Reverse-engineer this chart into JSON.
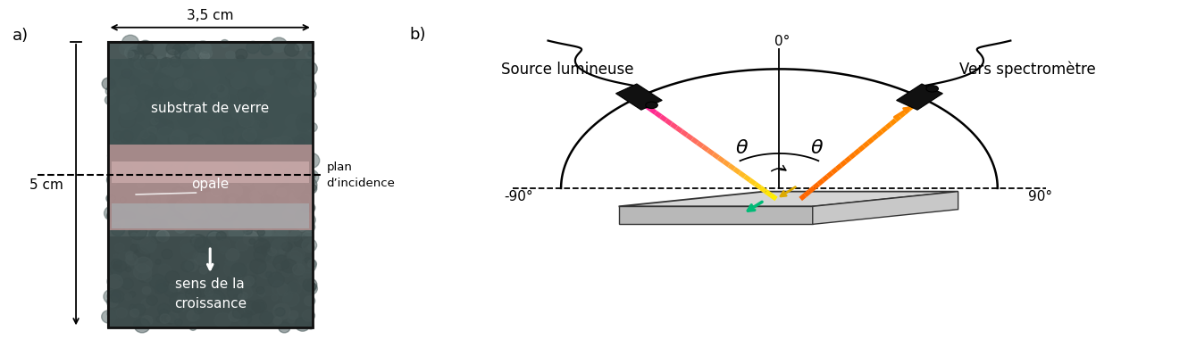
{
  "bg_color": "#ffffff",
  "panel_a": {
    "label": "a)",
    "width_label": "3,5 cm",
    "height_label": "5 cm",
    "text_substrat": "substrat de verre",
    "text_opale": "opale",
    "text_sens1": "sens de la",
    "text_sens2": "croissance",
    "text_plan": "plan",
    "text_dincidence": "d’incidence",
    "dark_bg": "#4a5858",
    "darker_top": "#3d4f50",
    "opale_pink": "#b08888",
    "opale_light": "#c8a8a8",
    "opale_blue_bottom": "#9aacb0"
  },
  "panel_b": {
    "label": "b)",
    "text_source": "Source lumineuse",
    "text_spectro": "Vers spectromètre",
    "text_0": "0°",
    "text_m90": "-90°",
    "text_p90": "90°",
    "text_theta": "θ",
    "plate_top_color": "#d8d8d8",
    "plate_side_color": "#b0b0b0",
    "plate_edge": "#444444"
  }
}
